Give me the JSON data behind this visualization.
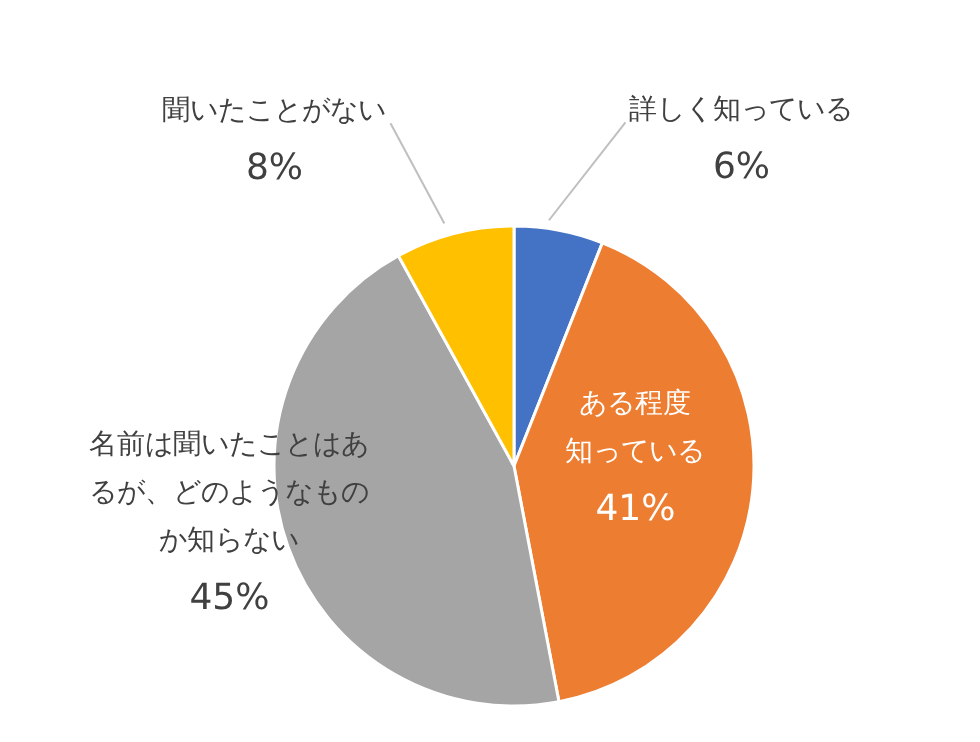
{
  "chart_data": {
    "type": "pie",
    "categories": [
      "詳しく知っている",
      "ある程度知っている",
      "名前は聞いたことはあるが、どのようなものか知らない",
      "聞いたことがない"
    ],
    "values": [
      6,
      41,
      45,
      8
    ],
    "value_labels": [
      "6%",
      "41%",
      "45%",
      "8%"
    ],
    "colors": [
      "#4472c4",
      "#ed7d31",
      "#a5a5a5",
      "#ffc000"
    ]
  }
}
